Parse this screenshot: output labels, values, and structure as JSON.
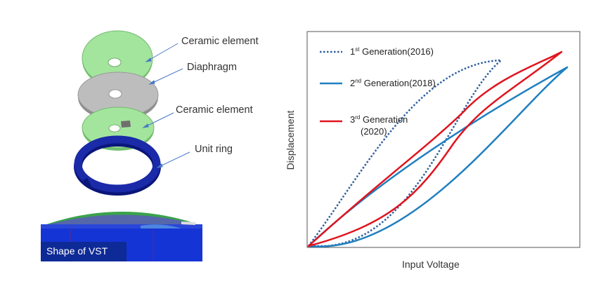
{
  "exploded_view": {
    "parts": [
      {
        "label": "Ceramic element",
        "color": "#9ee39a"
      },
      {
        "label": "Diaphragm",
        "color": "#b8b8b8"
      },
      {
        "label": "Ceramic element",
        "color": "#9ee39a"
      },
      {
        "label": "Unit ring",
        "color": "#1a2a9c"
      }
    ],
    "caption": "Shape of VST",
    "base_color": "#1636d8"
  },
  "chart_data": {
    "type": "line",
    "xlabel": "Input Voltage",
    "ylabel": "Displacement",
    "series": [
      {
        "name": "1st Generation(2016)",
        "ordinal": "1",
        "suffix": "st",
        "rest": " Generation(2016)",
        "color": "#2e5fa0",
        "style": "dotted"
      },
      {
        "name": "2nd Generation(2018)",
        "ordinal": "2",
        "suffix": "nd",
        "rest": " Generation(2018)",
        "color": "#1f7fc0",
        "style": "solid"
      },
      {
        "name": "3rd Generation (2020)",
        "ordinal": "3",
        "suffix": "rd",
        "rest": " Generation",
        "line2": "(2020)",
        "color": "#e0141e",
        "style": "solid"
      }
    ]
  }
}
